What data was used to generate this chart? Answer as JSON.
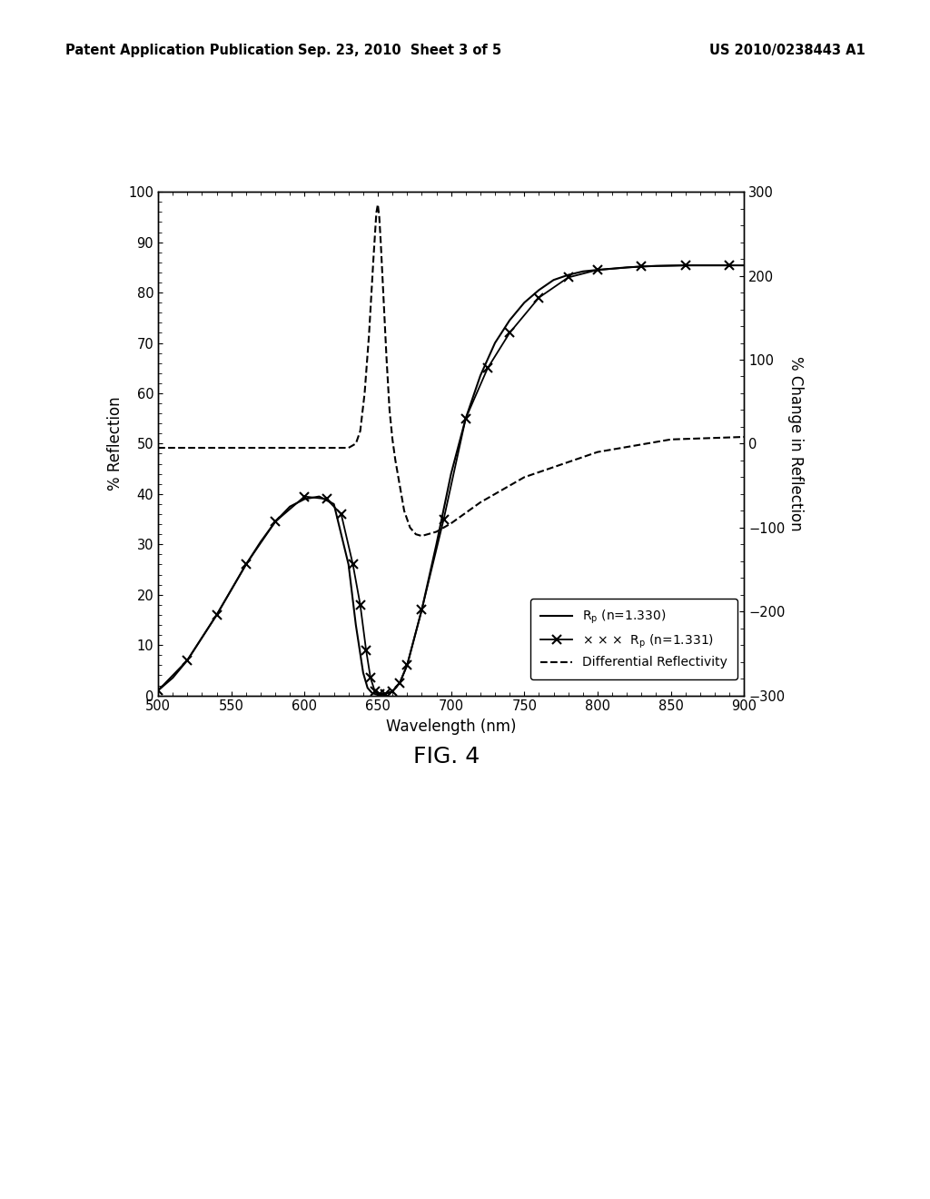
{
  "header_left": "Patent Application Publication",
  "header_mid": "Sep. 23, 2010  Sheet 3 of 5",
  "header_right": "US 2010/0238443 A1",
  "fig_label": "FIG. 4",
  "xlabel": "Wavelength (nm)",
  "ylabel_left": "% Reflection",
  "ylabel_right": "% Change in Reflection",
  "xlim": [
    500,
    900
  ],
  "ylim_left": [
    0,
    100
  ],
  "ylim_right": [
    -300,
    300
  ],
  "xticks": [
    500,
    550,
    600,
    650,
    700,
    750,
    800,
    850,
    900
  ],
  "yticks_left": [
    0,
    10,
    20,
    30,
    40,
    50,
    60,
    70,
    80,
    90,
    100
  ],
  "yticks_right": [
    -300,
    -200,
    -100,
    0,
    100,
    200,
    300
  ],
  "background_color": "#ffffff",
  "line_color": "#000000",
  "rp1330_x": [
    500,
    510,
    520,
    530,
    540,
    550,
    560,
    570,
    580,
    590,
    600,
    610,
    620,
    630,
    635,
    640,
    643,
    646,
    649,
    652,
    655,
    660,
    665,
    670,
    680,
    690,
    700,
    710,
    720,
    730,
    740,
    750,
    760,
    770,
    780,
    790,
    800,
    820,
    840,
    860,
    880,
    900
  ],
  "rp1330_y": [
    1.0,
    3.5,
    7.0,
    11.5,
    16.0,
    21.0,
    26.0,
    30.5,
    34.5,
    37.5,
    39.0,
    39.5,
    38.0,
    26.0,
    14.0,
    4.5,
    1.5,
    0.5,
    0.2,
    0.2,
    0.3,
    0.8,
    2.5,
    6.0,
    17.0,
    30.0,
    44.0,
    55.0,
    63.5,
    70.0,
    74.5,
    78.0,
    80.5,
    82.5,
    83.5,
    84.2,
    84.5,
    85.0,
    85.3,
    85.4,
    85.4,
    85.4
  ],
  "rp1331_x": [
    500,
    520,
    540,
    560,
    580,
    600,
    615,
    625,
    633,
    638,
    642,
    645,
    648,
    651,
    655,
    660,
    665,
    670,
    680,
    695,
    710,
    725,
    740,
    760,
    780,
    800,
    830,
    860,
    890
  ],
  "rp1331_y": [
    1.0,
    7.0,
    16.0,
    26.0,
    34.5,
    39.5,
    39.0,
    36.0,
    26.0,
    18.0,
    9.0,
    3.5,
    0.8,
    0.3,
    0.3,
    0.8,
    2.5,
    6.0,
    17.0,
    35.0,
    55.0,
    65.0,
    72.0,
    79.0,
    83.0,
    84.5,
    85.2,
    85.4,
    85.4
  ],
  "diff_x": [
    500,
    520,
    540,
    560,
    580,
    600,
    620,
    630,
    635,
    638,
    641,
    644,
    647,
    649,
    650,
    651,
    652,
    654,
    656,
    658,
    660,
    662,
    665,
    668,
    672,
    676,
    680,
    690,
    700,
    720,
    750,
    800,
    850,
    900
  ],
  "diff_y": [
    -5,
    -5,
    -5,
    -5,
    -5,
    -5,
    -5,
    -5,
    0,
    15,
    60,
    130,
    220,
    275,
    285,
    270,
    240,
    170,
    100,
    40,
    5,
    -20,
    -50,
    -80,
    -100,
    -108,
    -110,
    -105,
    -95,
    -70,
    -40,
    -10,
    5,
    8
  ]
}
